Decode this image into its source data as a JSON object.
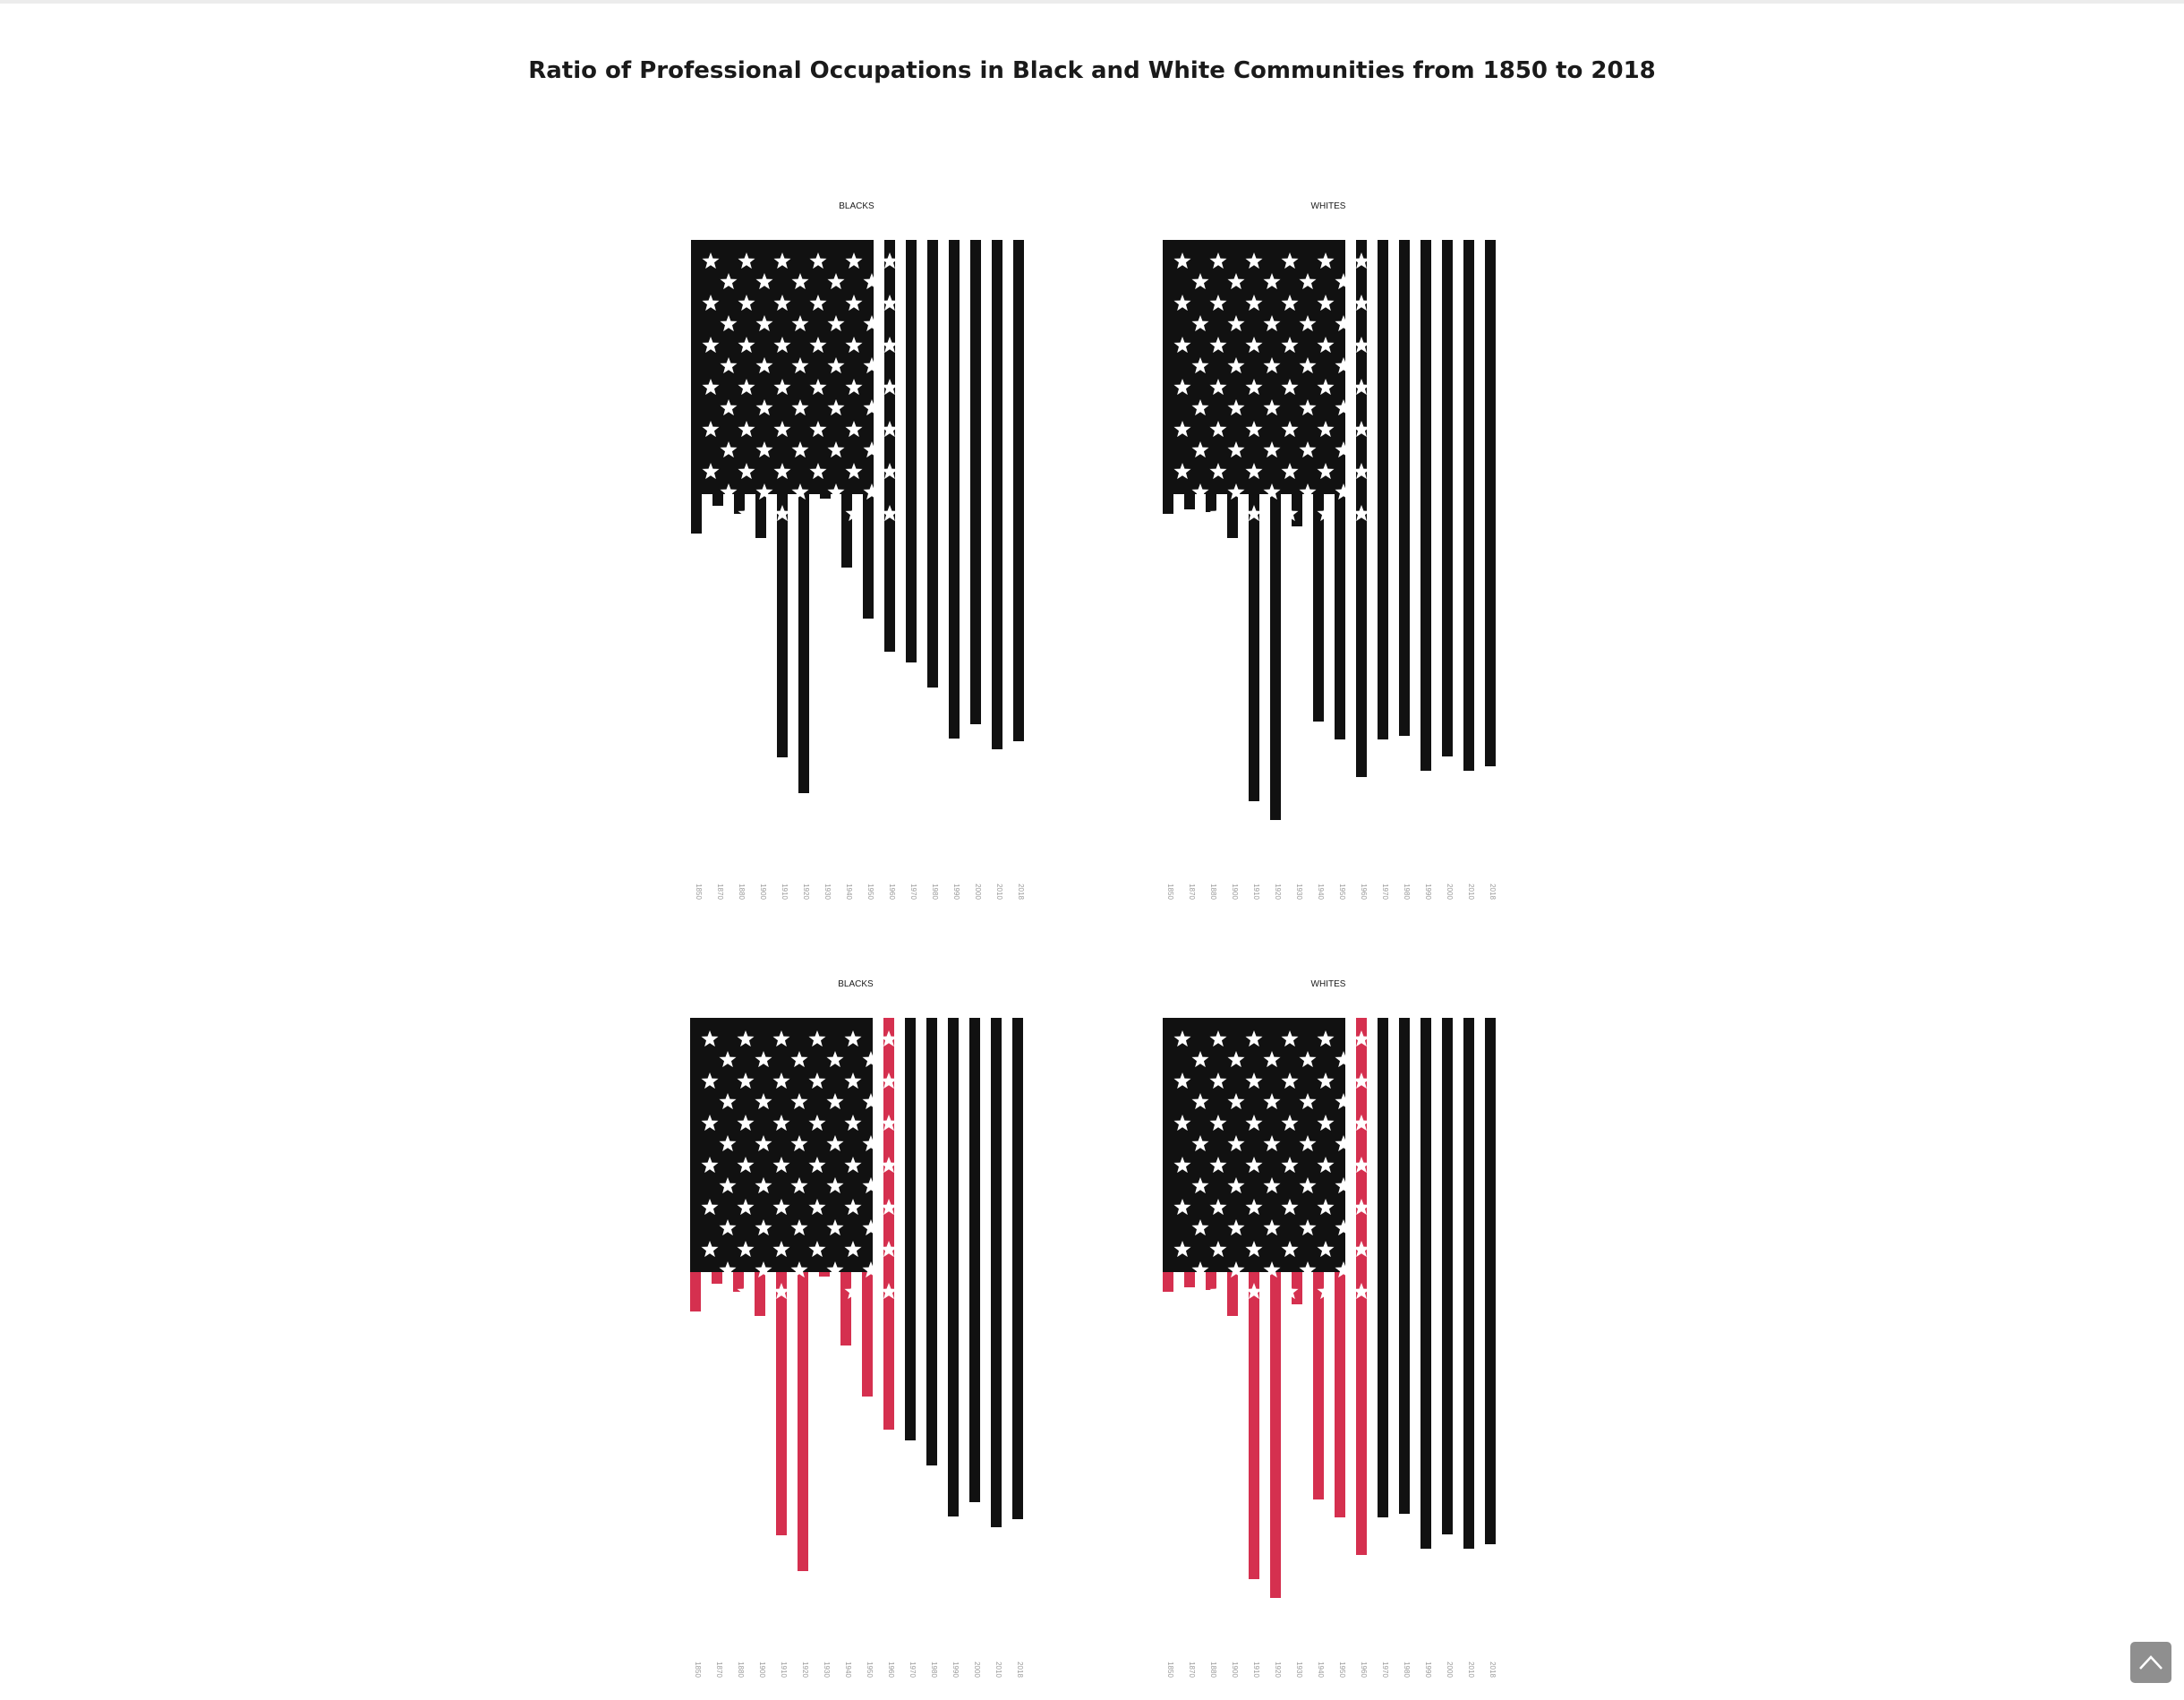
{
  "page": {
    "title": "Ratio of Professional Occupations in Black and White Communities from 1850 to 2018"
  },
  "colors": {
    "ink": "#111111",
    "highlight": "#d5304f",
    "star": "#ffffff",
    "year_label": "#9a9a9a",
    "panel_label": "#1a1a1a"
  },
  "scroll_top": {
    "icon": "chevron-up-icon"
  },
  "chart_data": [
    {
      "type": "bar",
      "title": "BLACKS",
      "highlight": false,
      "baseline": "flag canton bottom",
      "categories": [
        "1850",
        "1870",
        "1880",
        "1900",
        "1910",
        "1920",
        "1930",
        "1940",
        "1950",
        "1960",
        "1970",
        "1980",
        "1990",
        "2000",
        "2010",
        "2018"
      ],
      "values": [
        44,
        13,
        22,
        49,
        294,
        334,
        5,
        82,
        139,
        176,
        188,
        216,
        273,
        257,
        285,
        276
      ],
      "highlighted_categories": []
    },
    {
      "type": "bar",
      "title": "WHITES",
      "highlight": false,
      "baseline": "flag canton bottom",
      "categories": [
        "1850",
        "1870",
        "1880",
        "1900",
        "1910",
        "1920",
        "1930",
        "1940",
        "1950",
        "1960",
        "1970",
        "1980",
        "1990",
        "2000",
        "2010",
        "2018"
      ],
      "values": [
        22,
        17,
        20,
        49,
        343,
        364,
        36,
        254,
        274,
        316,
        274,
        270,
        309,
        293,
        309,
        304
      ],
      "highlighted_categories": []
    },
    {
      "type": "bar",
      "title": "BLACKS",
      "highlight": true,
      "baseline": "flag canton bottom",
      "categories": [
        "1850",
        "1870",
        "1880",
        "1900",
        "1910",
        "1920",
        "1930",
        "1940",
        "1950",
        "1960",
        "1970",
        "1980",
        "1990",
        "2000",
        "2010",
        "2018"
      ],
      "values": [
        44,
        13,
        22,
        49,
        294,
        334,
        5,
        82,
        139,
        176,
        188,
        216,
        273,
        257,
        285,
        276
      ],
      "highlighted_categories": [
        "1850",
        "1870",
        "1880",
        "1900",
        "1910",
        "1920",
        "1930",
        "1940",
        "1950",
        "1960"
      ]
    },
    {
      "type": "bar",
      "title": "WHITES",
      "highlight": true,
      "baseline": "flag canton bottom",
      "categories": [
        "1850",
        "1870",
        "1880",
        "1900",
        "1910",
        "1920",
        "1930",
        "1940",
        "1950",
        "1960",
        "1970",
        "1980",
        "1990",
        "2000",
        "2010",
        "2018"
      ],
      "values": [
        22,
        17,
        20,
        49,
        343,
        364,
        36,
        254,
        274,
        316,
        274,
        270,
        309,
        293,
        309,
        304
      ],
      "highlighted_categories": [
        "1850",
        "1870",
        "1880",
        "1900",
        "1910",
        "1920",
        "1930",
        "1940",
        "1950",
        "1960"
      ]
    }
  ]
}
